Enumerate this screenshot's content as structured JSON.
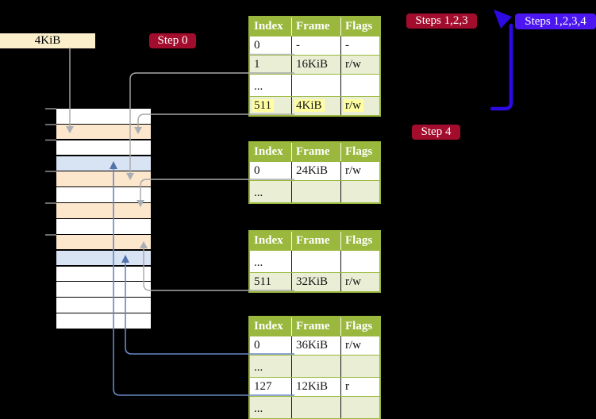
{
  "frame_label": {
    "text": "4KiB"
  },
  "badges": {
    "step0": {
      "label": "Step 0"
    },
    "steps123": {
      "label": "Steps 1,2,3"
    },
    "steps1234": {
      "label": "Steps 1,2,3,4"
    },
    "step4": {
      "label": "Step 4"
    }
  },
  "page_tables": [
    {
      "name": "table-1",
      "headers": [
        "Index",
        "Frame",
        "Flags"
      ],
      "rows": [
        {
          "index": "0",
          "frame": "-",
          "flags": "-",
          "shaded": false,
          "dots": false,
          "highlighted": false
        },
        {
          "index": "1",
          "frame": "16KiB",
          "flags": "r/w",
          "shaded": true,
          "dots": false,
          "highlighted": false
        },
        {
          "index": "...",
          "frame": "",
          "flags": "",
          "shaded": false,
          "dots": true,
          "highlighted": false
        },
        {
          "index": "511",
          "frame": "4KiB",
          "flags": "r/w",
          "shaded": true,
          "dots": false,
          "highlighted": true
        }
      ]
    },
    {
      "name": "table-2",
      "headers": [
        "Index",
        "Frame",
        "Flags"
      ],
      "rows": [
        {
          "index": "0",
          "frame": "24KiB",
          "flags": "r/w",
          "shaded": false,
          "dots": false,
          "highlighted": false
        },
        {
          "index": "...",
          "frame": "",
          "flags": "",
          "shaded": true,
          "dots": true,
          "highlighted": false
        }
      ]
    },
    {
      "name": "table-3",
      "headers": [
        "Index",
        "Frame",
        "Flags"
      ],
      "rows": [
        {
          "index": "...",
          "frame": "",
          "flags": "",
          "shaded": false,
          "dots": true,
          "highlighted": false
        },
        {
          "index": "511",
          "frame": "32KiB",
          "flags": "r/w",
          "shaded": true,
          "dots": false,
          "highlighted": false
        }
      ]
    },
    {
      "name": "table-4",
      "headers": [
        "Index",
        "Frame",
        "Flags"
      ],
      "rows": [
        {
          "index": "0",
          "frame": "36KiB",
          "flags": "r/w",
          "shaded": false,
          "dots": false,
          "highlighted": false
        },
        {
          "index": "...",
          "frame": "",
          "flags": "",
          "shaded": true,
          "dots": true,
          "highlighted": false
        },
        {
          "index": "127",
          "frame": "12KiB",
          "flags": "r",
          "shaded": false,
          "dots": false,
          "highlighted": false
        },
        {
          "index": "...",
          "frame": "",
          "flags": "",
          "shaded": true,
          "dots": true,
          "highlighted": false
        }
      ]
    }
  ],
  "memory_column": {
    "frames": [
      "free",
      "pagetable",
      "free",
      "data",
      "pagetable",
      "free",
      "pagetable",
      "free",
      "pagetable",
      "data",
      "free",
      "free",
      "free",
      "free"
    ]
  },
  "colors": {
    "background": "#000000",
    "frame_label_beige": "#fbeecb",
    "badge_red": "#a30d2d",
    "badge_blue": "#4b16ef",
    "big_arrow_blue": "#2d0ae1",
    "table_header_green": "#9ab83d",
    "table_border_green": "#9ab83d",
    "table_row_shade": "#e9eed5",
    "highlight_yellow": "#ffffa2",
    "pagetable_frame_peach": "#fce6cc",
    "data_frame_blue": "#d8e4f4",
    "connector_gray": "#a8a8a8",
    "arrowhead_gray": "#a9aeb4",
    "connector_blue": "#6888c2",
    "arrowhead_blue": "#5374ab",
    "tick_gray": "#9a9a9a"
  }
}
